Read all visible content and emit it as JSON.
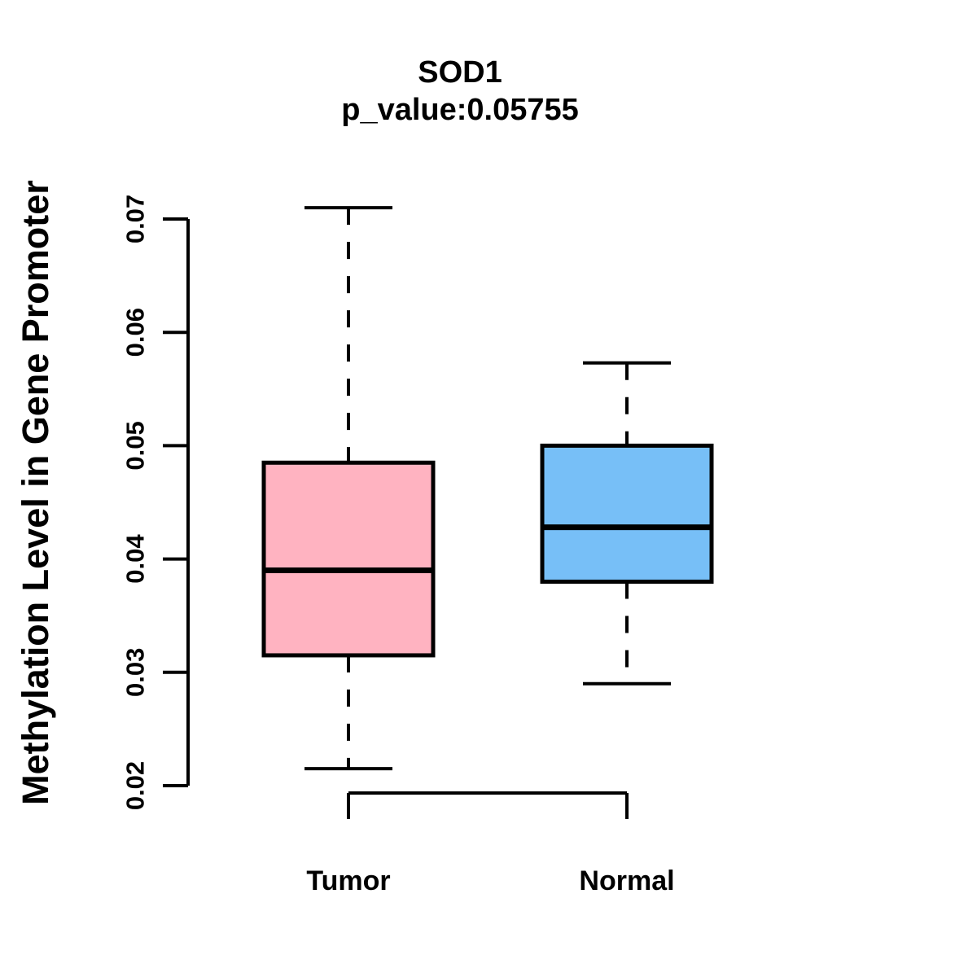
{
  "chart_data": {
    "type": "boxplot",
    "title": "SOD1",
    "subtitle": "p_value:0.05755",
    "ylabel": "Methylation Level in Gene Promoter",
    "xlabel": "",
    "ylim": [
      0.02,
      0.07
    ],
    "yticks": [
      0.02,
      0.03,
      0.04,
      0.05,
      0.06,
      0.07
    ],
    "ytick_labels": [
      "0.02",
      "0.03",
      "0.04",
      "0.05",
      "0.06",
      "0.07"
    ],
    "categories": [
      "Tumor",
      "Normal"
    ],
    "series": [
      {
        "name": "Tumor",
        "whisker_low": 0.0215,
        "q1": 0.0315,
        "median": 0.039,
        "q3": 0.0485,
        "whisker_high": 0.071,
        "fill": "#FFB3C1"
      },
      {
        "name": "Normal",
        "whisker_low": 0.029,
        "q1": 0.038,
        "median": 0.0428,
        "q3": 0.05,
        "whisker_high": 0.0573,
        "fill": "#77BFF7"
      }
    ],
    "stroke_color": "#000000",
    "background_color": "#FFFFFF",
    "grid": false,
    "legend": "none"
  }
}
